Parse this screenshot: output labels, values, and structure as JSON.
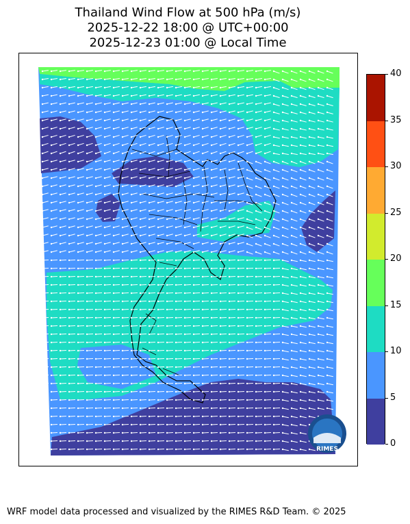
{
  "title": {
    "line1": "Thailand Wind Flow at 500 hPa (m/s)",
    "line2": "2025-12-22 18:00 @ UTC+00:00",
    "line3": "2025-12-23 01:00 @ Local Time"
  },
  "colorbar": {
    "ticks": [
      "0",
      "5",
      "10",
      "15",
      "20",
      "25",
      "30",
      "35",
      "40"
    ],
    "colors": [
      "#3f3f9f",
      "#4a96ff",
      "#1edcc3",
      "#66ff5a",
      "#d2eb2d",
      "#ffaa32",
      "#ff5014",
      "#aa1400"
    ]
  },
  "logo": {
    "text": "RIMES"
  },
  "footer": "WRF model data processed and visualized by the RIMES R&D Team. © 2025"
}
